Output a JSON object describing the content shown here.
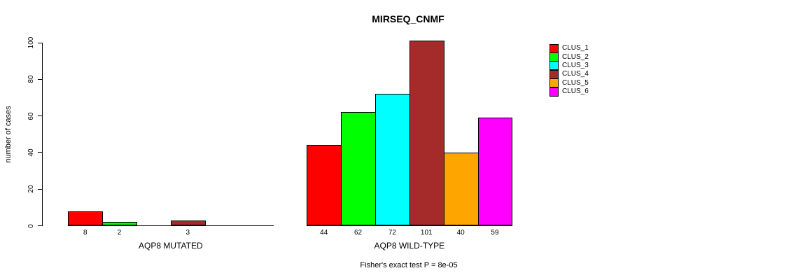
{
  "chart_data": {
    "type": "bar",
    "title": "MIRSEQ_CNMF",
    "ylabel": "number of cases",
    "xlabel": "",
    "ylim": [
      0,
      100
    ],
    "yticks": [
      0,
      20,
      40,
      60,
      80,
      100
    ],
    "grid": false,
    "legend_position": "top-right",
    "series_names": [
      "CLUS_1",
      "CLUS_2",
      "CLUS_3",
      "CLUS_4",
      "CLUS_5",
      "CLUS_6"
    ],
    "series_colors": [
      "#ff0000",
      "#00ff00",
      "#00ffff",
      "#a52a2a",
      "#ffa500",
      "#ff00ff"
    ],
    "groups": [
      {
        "label": "AQP8 MUTATED",
        "values": [
          8,
          2,
          0,
          3,
          0,
          0
        ],
        "bar_labels": [
          "8",
          "2",
          "",
          "3",
          "",
          ""
        ]
      },
      {
        "label": "AQP8 WILD-TYPE",
        "values": [
          44,
          62,
          72,
          101,
          40,
          59
        ],
        "bar_labels": [
          "44",
          "62",
          "72",
          "101",
          "40",
          "59"
        ]
      }
    ],
    "annotation": "Fisher's exact test P = 8e-05"
  }
}
